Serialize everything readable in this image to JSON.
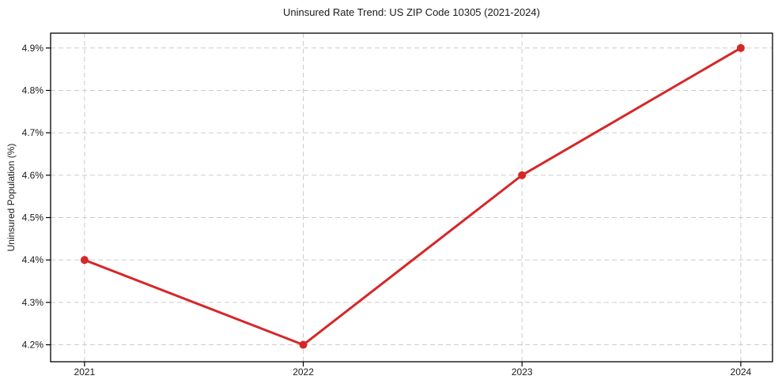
{
  "chart_data": {
    "type": "line",
    "title": "Uninsured Rate Trend: US ZIP Code 10305 (2021-2024)",
    "xlabel": "",
    "ylabel": "Uninsured Population (%)",
    "x": [
      2021,
      2022,
      2023,
      2024
    ],
    "values": [
      4.4,
      4.2,
      4.6,
      4.9
    ],
    "xticks": [
      2021,
      2022,
      2023,
      2024
    ],
    "xtick_labels": [
      "2021",
      "2022",
      "2023",
      "2024"
    ],
    "yticks": [
      4.2,
      4.3,
      4.4,
      4.5,
      4.6,
      4.7,
      4.8,
      4.9
    ],
    "ytick_labels": [
      "4.2%",
      "4.3%",
      "4.4%",
      "4.5%",
      "4.6%",
      "4.7%",
      "4.8%",
      "4.9%"
    ],
    "xlim": [
      2020.845,
      2024.145
    ],
    "ylim": [
      4.16,
      4.935
    ],
    "grid": true,
    "grid_style": "dashed",
    "legend": false,
    "marker": "circle",
    "colors": {
      "line": "#d62728",
      "marker": "#d62728",
      "grid": "#cccccc",
      "spine": "#000000",
      "text": "#1a1a1a"
    }
  }
}
